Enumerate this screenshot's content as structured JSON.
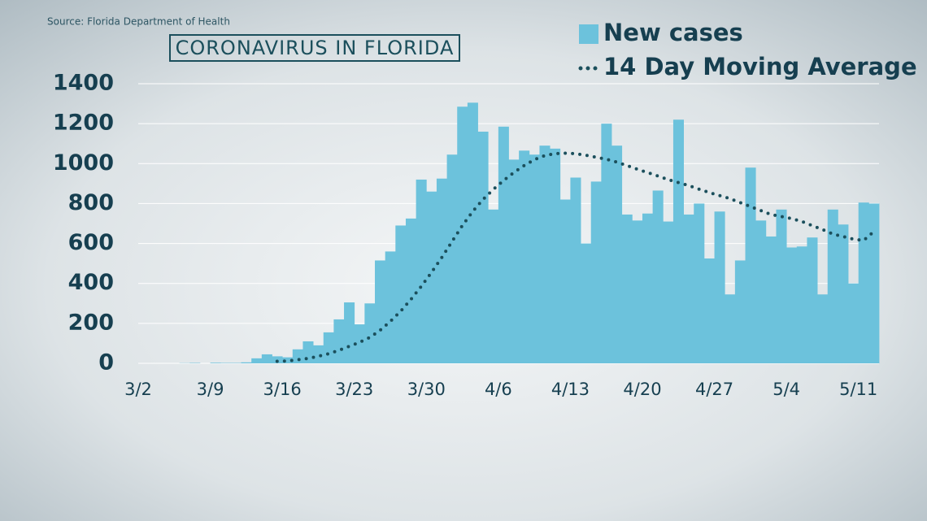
{
  "chart_data": {
    "type": "bar",
    "title": "CORONAVIRUS IN FLORIDA",
    "source": "Source: Florida Department of Health",
    "categories": [
      "3/2",
      null,
      null,
      null,
      null,
      null,
      null,
      "3/9",
      null,
      null,
      null,
      null,
      null,
      null,
      "3/16",
      null,
      null,
      null,
      null,
      null,
      null,
      "3/23",
      null,
      null,
      null,
      null,
      null,
      null,
      "3/30",
      null,
      null,
      null,
      null,
      null,
      null,
      "4/6",
      null,
      null,
      null,
      null,
      null,
      null,
      "4/13",
      null,
      null,
      null,
      null,
      null,
      null,
      "4/20",
      null,
      null,
      null,
      null,
      null,
      null,
      "4/27",
      null,
      null,
      null,
      null,
      null,
      null,
      "5/4",
      null,
      null,
      null,
      null,
      null,
      null,
      "5/11",
      null
    ],
    "series": [
      {
        "name": "New cases",
        "type": "bar",
        "color": "#6cc2dc",
        "values": [
          0,
          0,
          0,
          0,
          1,
          2,
          0,
          3,
          2,
          2,
          5,
          25,
          45,
          35,
          30,
          70,
          110,
          90,
          155,
          220,
          305,
          195,
          300,
          515,
          560,
          690,
          725,
          920,
          860,
          925,
          1045,
          1285,
          1305,
          1160,
          770,
          1185,
          1020,
          1065,
          1045,
          1090,
          1075,
          820,
          930,
          600,
          910,
          1200,
          1090,
          745,
          715,
          750,
          865,
          710,
          1220,
          745,
          800,
          525,
          760,
          345,
          515,
          980,
          715,
          635,
          770,
          580,
          585,
          630,
          345,
          770,
          695,
          400,
          805,
          800
        ]
      },
      {
        "name": "14 Day Moving Average",
        "type": "line",
        "color": "#1b4f5c",
        "values": [
          null,
          null,
          null,
          null,
          null,
          null,
          null,
          null,
          null,
          null,
          null,
          null,
          null,
          10,
          12,
          18,
          25,
          35,
          48,
          65,
          85,
          105,
          130,
          165,
          210,
          260,
          320,
          385,
          455,
          530,
          610,
          690,
          760,
          820,
          870,
          915,
          955,
          990,
          1020,
          1040,
          1050,
          1052,
          1050,
          1042,
          1032,
          1022,
          1008,
          990,
          972,
          955,
          938,
          920,
          905,
          890,
          872,
          855,
          840,
          825,
          805,
          785,
          765,
          745,
          735,
          725,
          710,
          690,
          670,
          648,
          635,
          622,
          615,
          660
        ]
      }
    ],
    "ylim": [
      0,
      1400
    ],
    "yticks": [
      0,
      200,
      400,
      600,
      800,
      1000,
      1200,
      1400
    ],
    "grid": true
  }
}
